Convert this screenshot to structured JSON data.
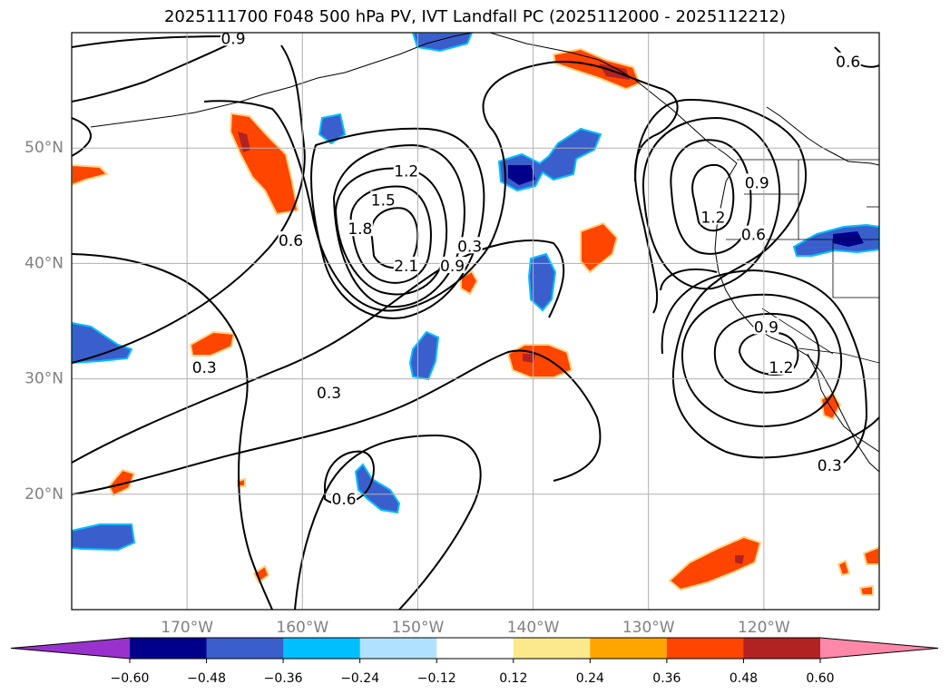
{
  "title": "2025111700 F048 500 hPa PV, IVT Landfall PC (2025112000 - 2025112212)",
  "map": {
    "projection": "PlateCarree",
    "extent_lon": [
      -180,
      -110
    ],
    "extent_lat": [
      10,
      60
    ],
    "lat_ticks": [
      {
        "value": 50,
        "label": "50°N"
      },
      {
        "value": 40,
        "label": "40°N"
      },
      {
        "value": 30,
        "label": "30°N"
      },
      {
        "value": 20,
        "label": "20°N"
      }
    ],
    "lon_ticks": [
      {
        "value": -170,
        "label": "170°W"
      },
      {
        "value": -160,
        "label": "160°W"
      },
      {
        "value": -150,
        "label": "150°W"
      },
      {
        "value": -140,
        "label": "140°W"
      },
      {
        "value": -130,
        "label": "130°W"
      },
      {
        "value": -120,
        "label": "120°W"
      }
    ],
    "grid": true
  },
  "contour_labels": [
    {
      "text": "0.9",
      "lon": -166,
      "lat": 59.5
    },
    {
      "text": "1.2",
      "lon": -151,
      "lat": 48
    },
    {
      "text": "1.5",
      "lon": -153,
      "lat": 45.5
    },
    {
      "text": "1.8",
      "lon": -155,
      "lat": 43
    },
    {
      "text": "2.1",
      "lon": -151,
      "lat": 39.8
    },
    {
      "text": "0.9",
      "lon": -147,
      "lat": 39.8
    },
    {
      "text": "0.6",
      "lon": -161,
      "lat": 42
    },
    {
      "text": "0.3",
      "lon": -145.5,
      "lat": 41.5
    },
    {
      "text": "0.3",
      "lon": -168.5,
      "lat": 31
    },
    {
      "text": "0.3",
      "lon": -157.7,
      "lat": 28.8
    },
    {
      "text": "0.6",
      "lon": -156.4,
      "lat": 19.6
    },
    {
      "text": "0.6",
      "lon": -112.7,
      "lat": 57.5
    },
    {
      "text": "0.9",
      "lon": -120.6,
      "lat": 47
    },
    {
      "text": "1.2",
      "lon": -124.4,
      "lat": 44
    },
    {
      "text": "0.6",
      "lon": -120.9,
      "lat": 42.5
    },
    {
      "text": "0.9",
      "lon": -119.8,
      "lat": 34.5
    },
    {
      "text": "1.2",
      "lon": -118.5,
      "lat": 31
    },
    {
      "text": "0.3",
      "lon": -114.3,
      "lat": 22.5
    }
  ],
  "colorbar": {
    "ticks": [
      "−0.60",
      "−0.48",
      "−0.36",
      "−0.24",
      "−0.12",
      "0.12",
      "0.24",
      "0.36",
      "0.48",
      "0.60"
    ],
    "bounds": [
      -0.6,
      -0.48,
      -0.36,
      -0.24,
      -0.12,
      0.12,
      0.24,
      0.36,
      0.48,
      0.6
    ],
    "colors": [
      "#9932cc",
      "#00008b",
      "#3a5fcd",
      "#00bfff",
      "#b0e2ff",
      "#ffffff",
      "#fce98c",
      "#ffa500",
      "#ff4500",
      "#b22222",
      "#ff88a8"
    ],
    "extend": "both"
  }
}
